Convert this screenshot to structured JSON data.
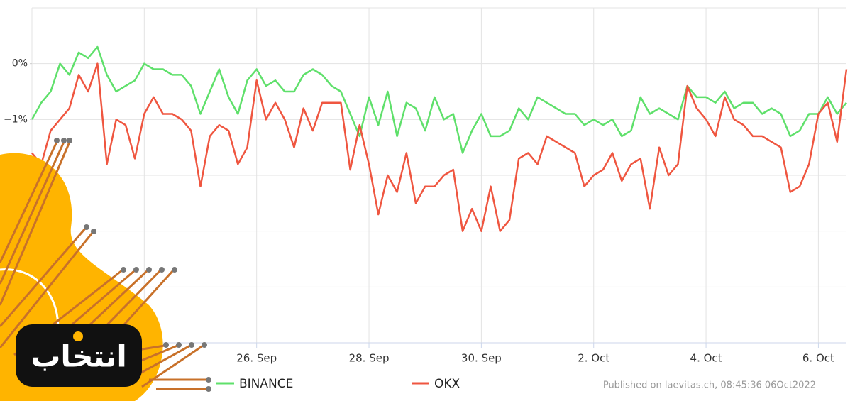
{
  "chart_data": {
    "type": "line",
    "series": [
      {
        "name": "BINANCE",
        "color": "#5fe06b",
        "values": [
          -1.0,
          -0.7,
          -0.5,
          0.0,
          -0.2,
          0.2,
          0.1,
          0.3,
          -0.2,
          -0.5,
          -0.4,
          -0.3,
          0.0,
          -0.1,
          -0.1,
          -0.2,
          -0.2,
          -0.4,
          -0.9,
          -0.5,
          -0.1,
          -0.6,
          -0.9,
          -0.3,
          -0.1,
          -0.4,
          -0.3,
          -0.5,
          -0.5,
          -0.2,
          -0.1,
          -0.2,
          -0.4,
          -0.5,
          -0.9,
          -1.3,
          -0.6,
          -1.1,
          -0.5,
          -1.3,
          -0.7,
          -0.8,
          -1.2,
          -0.6,
          -1.0,
          -0.9,
          -1.6,
          -1.2,
          -0.9,
          -1.3,
          -1.3,
          -1.2,
          -0.8,
          -1.0,
          -0.6,
          -0.7,
          -0.8,
          -0.9,
          -0.9,
          -1.1,
          -1.0,
          -1.1,
          -1.0,
          -1.3,
          -1.2,
          -0.6,
          -0.9,
          -0.8,
          -0.9,
          -1.0,
          -0.4,
          -0.6,
          -0.6,
          -0.7,
          -0.5,
          -0.8,
          -0.7,
          -0.7,
          -0.9,
          -0.8,
          -0.9,
          -1.3,
          -1.2,
          -0.9,
          -0.9,
          -0.6,
          -0.9,
          -0.7
        ]
      },
      {
        "name": "OKX",
        "color": "#ef5640",
        "values": [
          -1.6,
          -1.8,
          -1.2,
          -1.0,
          -0.8,
          -0.2,
          -0.5,
          0.0,
          -1.8,
          -1.0,
          -1.1,
          -1.7,
          -0.9,
          -0.6,
          -0.9,
          -0.9,
          -1.0,
          -1.2,
          -2.2,
          -1.3,
          -1.1,
          -1.2,
          -1.8,
          -1.5,
          -0.3,
          -1.0,
          -0.7,
          -1.0,
          -1.5,
          -0.8,
          -1.2,
          -0.7,
          -0.7,
          -0.7,
          -1.9,
          -1.1,
          -1.8,
          -2.7,
          -2.0,
          -2.3,
          -1.6,
          -2.5,
          -2.2,
          -2.2,
          -2.0,
          -1.9,
          -3.0,
          -2.6,
          -3.0,
          -2.2,
          -3.0,
          -2.8,
          -1.7,
          -1.6,
          -1.8,
          -1.3,
          -1.4,
          -1.5,
          -1.6,
          -2.2,
          -2.0,
          -1.9,
          -1.6,
          -2.1,
          -1.8,
          -1.7,
          -2.6,
          -1.5,
          -2.0,
          -1.8,
          -0.4,
          -0.8,
          -1.0,
          -1.3,
          -0.6,
          -1.0,
          -1.1,
          -1.3,
          -1.3,
          -1.4,
          -1.5,
          -2.3,
          -2.2,
          -1.8,
          -0.9,
          -0.7,
          -1.4,
          -0.1
        ]
      }
    ],
    "xlim": [
      0,
      87
    ],
    "xticks": [
      {
        "value": 24,
        "label": "26. Sep"
      },
      {
        "value": 36,
        "label": "28. Sep"
      },
      {
        "value": 48,
        "label": "30. Sep"
      },
      {
        "value": 60,
        "label": "2. Oct"
      },
      {
        "value": 72,
        "label": "4. Oct"
      },
      {
        "value": 84,
        "label": "6. Oct"
      }
    ],
    "xgrid": [
      0,
      12,
      24,
      36,
      48,
      60,
      72,
      84
    ],
    "ylim": [
      -5,
      1
    ],
    "yticks": [
      {
        "value": 0,
        "label": "0%"
      },
      {
        "value": -1,
        "label": "−1%"
      }
    ],
    "ygrid": [
      1,
      0,
      -1,
      -2,
      -3,
      -4,
      -5
    ],
    "grid": true,
    "credit": "Published on laevitas.ch, 08:45:36 06Oct2022",
    "logo": "انتخاب"
  }
}
